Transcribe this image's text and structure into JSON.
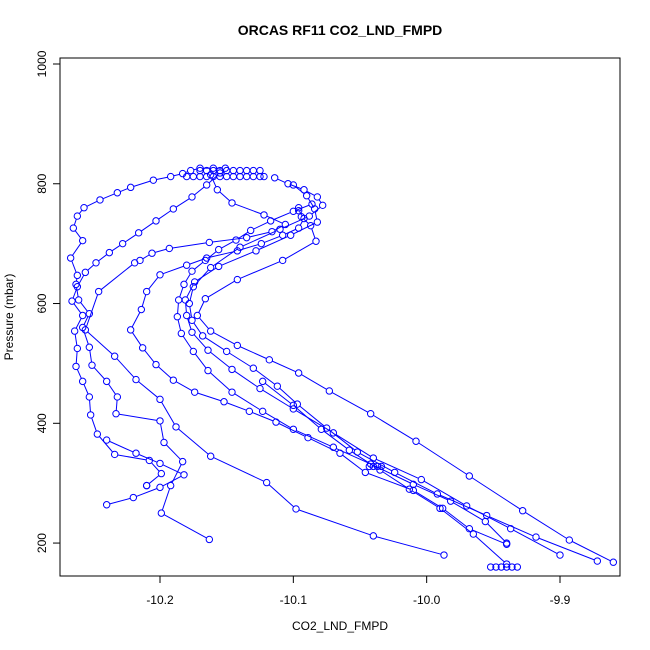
{
  "chart_data": {
    "type": "line",
    "title": "ORCAS RF11 CO2_LND_FMPD",
    "xlabel": "CO2_LND_FMPD",
    "ylabel": "Pressure (mbar)",
    "xlim": [
      -10.275,
      -9.855
    ],
    "ylim": [
      1010,
      145
    ],
    "y_reversed": true,
    "grid": false,
    "x_ticks": [
      {
        "value": -10.2,
        "label": "-10.2"
      },
      {
        "value": -10.1,
        "label": "-10.1"
      },
      {
        "value": -10.0,
        "label": "-10.0"
      },
      {
        "value": -9.9,
        "label": "-9.9"
      }
    ],
    "y_ticks": [
      {
        "value": 200,
        "label": "200"
      },
      {
        "value": 400,
        "label": "400"
      },
      {
        "value": 600,
        "label": "600"
      },
      {
        "value": 800,
        "label": "800"
      },
      {
        "value": 1000,
        "label": "1000"
      }
    ],
    "color": "#0000ff",
    "series": [
      {
        "x": [
          -10.163,
          -10.199,
          -10.192,
          -10.183,
          -10.197,
          -10.2,
          -10.233,
          -10.232,
          -10.24,
          -10.251,
          -10.253,
          -10.258,
          -10.253,
          -10.261,
          -10.263,
          -10.262,
          -10.267,
          -10.258,
          -10.265,
          -10.262,
          -10.257,
          -10.245,
          -10.232,
          -10.222,
          -10.205,
          -10.192,
          -10.183,
          -10.177,
          -10.17,
          -10.16,
          -10.151
        ],
        "y": [
          206,
          250,
          296,
          336,
          368,
          404,
          416,
          444,
          470,
          497,
          527,
          560,
          583,
          606,
          632,
          647,
          676,
          705,
          726,
          746,
          760,
          773,
          785,
          794,
          806,
          812,
          817,
          822,
          826,
          826,
          826
        ]
      },
      {
        "x": [
          -10.21,
          -10.21,
          -10.199,
          -10.208,
          -10.234,
          -10.247,
          -10.252,
          -10.253,
          -10.258,
          -10.263,
          -10.262,
          -10.264,
          -10.258,
          -10.266,
          -10.262,
          -10.256,
          -10.248,
          -10.238,
          -10.228,
          -10.216,
          -10.203,
          -10.19,
          -10.176,
          -10.165,
          -10.155
        ],
        "y": [
          296,
          296,
          316,
          338,
          348,
          382,
          414,
          444,
          470,
          495,
          525,
          554,
          580,
          604,
          628,
          652,
          668,
          685,
          700,
          718,
          738,
          758,
          778,
          798,
          818
        ]
      },
      {
        "x": [
          -10.24,
          -10.22,
          -10.2,
          -10.182,
          -10.2,
          -10.218,
          -10.24
        ],
        "y": [
          264,
          276,
          293,
          314,
          333,
          350,
          372
        ]
      },
      {
        "x": [
          -9.987,
          -10.04,
          -10.098,
          -10.12,
          -10.162,
          -10.188,
          -10.2,
          -10.218,
          -10.234,
          -10.256,
          -10.246,
          -10.219,
          -10.215,
          -10.206,
          -10.193,
          -10.163,
          -10.135,
          -10.116,
          -10.106,
          -10.122,
          -10.146,
          -10.157,
          -10.162
        ],
        "y": [
          180,
          212,
          257,
          301,
          345,
          394,
          440,
          473,
          512,
          556,
          620,
          668,
          672,
          684,
          692,
          702,
          710,
          720,
          732,
          748,
          768,
          790,
          815
        ]
      },
      {
        "x": [
          -9.94,
          -9.968,
          -9.988,
          -10.01,
          -10.046,
          -10.065,
          -10.089,
          -10.113,
          -10.133,
          -10.152,
          -10.174,
          -10.19,
          -10.203,
          -10.213,
          -10.222,
          -10.214,
          -10.21,
          -10.2,
          -10.18,
          -10.165,
          -10.142,
          -10.124,
          -10.108,
          -10.096,
          -10.092,
          -10.096
        ],
        "y": [
          198,
          224,
          258,
          288,
          318,
          350,
          376,
          402,
          420,
          436,
          452,
          472,
          498,
          526,
          556,
          590,
          620,
          648,
          664,
          676,
          688,
          700,
          714,
          726,
          742,
          755
        ]
      },
      {
        "x": [
          -9.94,
          -9.956,
          -9.982,
          -10.01,
          -10.042,
          -10.07,
          -10.1,
          -10.123,
          -10.146,
          -10.164,
          -10.175,
          -10.184,
          -10.187,
          -10.186,
          -10.182,
          -10.176,
          -10.166,
          -10.156,
          -10.143,
          -10.132,
          -10.117,
          -10.1,
          -10.086
        ],
        "y": [
          200,
          236,
          270,
          298,
          332,
          360,
          390,
          420,
          452,
          488,
          520,
          550,
          578,
          606,
          632,
          654,
          672,
          690,
          706,
          722,
          738,
          754,
          766
        ]
      },
      {
        "x": [
          -9.9,
          -9.937,
          -9.97,
          -10.004,
          -10.04,
          -10.07,
          -10.1,
          -10.125,
          -10.146,
          -10.164,
          -10.176,
          -10.18,
          -10.181,
          -10.174,
          -10.156,
          -10.128,
          -10.102,
          -10.082,
          -10.084,
          -10.09,
          -10.1
        ],
        "y": [
          180,
          224,
          262,
          306,
          342,
          384,
          424,
          458,
          490,
          522,
          552,
          580,
          606,
          636,
          662,
          688,
          714,
          736,
          758,
          780,
          798
        ]
      },
      {
        "x": [
          -9.872,
          -9.918,
          -9.955,
          -9.992,
          -10.024,
          -10.052,
          -10.075,
          -10.097,
          -10.112,
          -10.13,
          -10.15,
          -10.168,
          -10.176,
          -10.178,
          -10.175,
          -10.162,
          -10.14,
          -10.11,
          -10.088,
          -10.078,
          -10.082,
          -10.092,
          -10.104,
          -10.114
        ],
        "y": [
          170,
          210,
          246,
          282,
          318,
          352,
          392,
          432,
          462,
          492,
          520,
          546,
          572,
          600,
          628,
          660,
          694,
          724,
          746,
          764,
          778,
          790,
          800,
          810
        ]
      },
      {
        "x": [
          -9.86,
          -9.893,
          -9.928,
          -9.968,
          -10.008,
          -10.042,
          -10.073,
          -10.096,
          -10.118,
          -10.142,
          -10.162,
          -10.172,
          -10.166,
          -10.142,
          -10.108,
          -10.083,
          -10.087,
          -10.094,
          -10.096
        ],
        "y": [
          168,
          205,
          254,
          312,
          370,
          416,
          454,
          484,
          506,
          530,
          554,
          580,
          608,
          640,
          672,
          704,
          730,
          745,
          760
        ]
      },
      {
        "x": [
          -9.94,
          -9.965,
          -9.99,
          -10.013,
          -10.035,
          -10.058,
          -10.079,
          -10.1,
          -10.123
        ],
        "y": [
          165,
          215,
          258,
          290,
          322,
          355,
          390,
          430,
          470
        ]
      },
      {
        "x": [
          -10.18,
          -10.175,
          -10.17,
          -10.165,
          -10.16,
          -10.155,
          -10.15,
          -10.145,
          -10.14,
          -10.135,
          -10.13,
          -10.125,
          -10.122
        ],
        "y": [
          812,
          812,
          812,
          812,
          812,
          812,
          812,
          812,
          812,
          812,
          812,
          812,
          812
        ]
      },
      {
        "x": [
          -10.17,
          -10.165,
          -10.16,
          -10.155,
          -10.15,
          -10.145,
          -10.14,
          -10.135,
          -10.13,
          -10.125
        ],
        "y": [
          822,
          822,
          822,
          822,
          822,
          822,
          822,
          822,
          822,
          822
        ]
      },
      {
        "x": [
          -10.043,
          -10.04,
          -10.037,
          -10.034
        ],
        "y": [
          328,
          328,
          328,
          328
        ]
      },
      {
        "x": [
          -9.952,
          -9.948,
          -9.944,
          -9.94,
          -9.936,
          -9.932
        ],
        "y": [
          160,
          160,
          160,
          160,
          160,
          160
        ]
      }
    ]
  }
}
